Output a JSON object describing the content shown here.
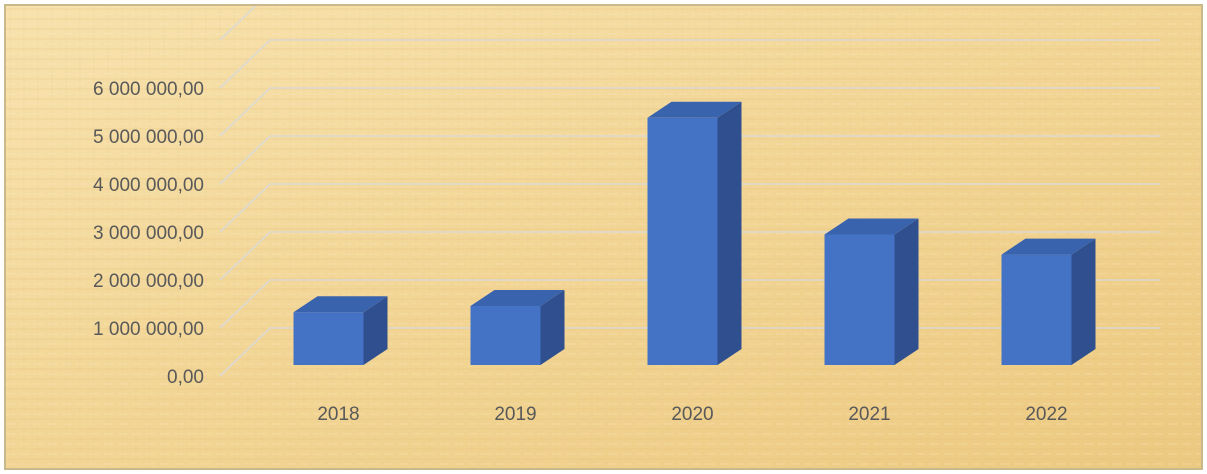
{
  "chart_data": {
    "type": "bar",
    "style": "3d-column",
    "categories": [
      "2018",
      "2019",
      "2020",
      "2021",
      "2022"
    ],
    "values": [
      1100000,
      1230000,
      5150000,
      2720000,
      2300000
    ],
    "yticks": [
      "0,00",
      "1 000 000,00",
      "2 000 000,00",
      "3 000 000,00",
      "4 000 000,00",
      "5 000 000,00",
      "6 000 000,00"
    ],
    "ylim": [
      0,
      6000000
    ],
    "grid": true,
    "legend": "none",
    "title": "",
    "xlabel": "",
    "ylabel": ""
  },
  "colors": {
    "bar_front": "#4472c4",
    "bar_side": "#2f4f8f",
    "bar_top": "#3a63ad",
    "gridline": "#d9d9d9",
    "background": "#f3d79a"
  }
}
